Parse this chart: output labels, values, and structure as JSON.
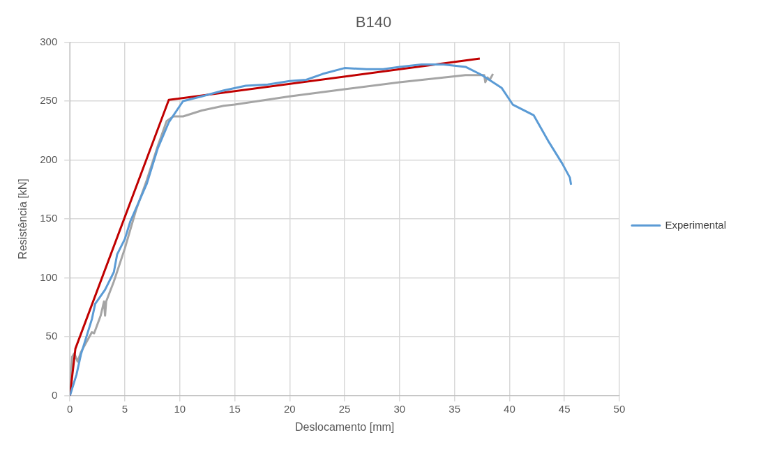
{
  "chart_data": {
    "type": "line",
    "title": "B140",
    "xlabel": "Deslocamento [mm]",
    "ylabel": "Resistência [kN]",
    "xlim": [
      0,
      50
    ],
    "xticks": [
      0,
      5,
      10,
      15,
      20,
      25,
      30,
      35,
      40,
      45,
      50
    ],
    "ylim": [
      0,
      300
    ],
    "yticks": [
      0,
      50,
      100,
      150,
      200,
      250,
      300
    ],
    "grid": true,
    "legend": "right",
    "marker": "none",
    "line_style": "solid",
    "series": [
      {
        "name": "Experimental",
        "color": "#5b9bd5",
        "x": [
          0,
          0.6,
          1,
          2,
          2.3,
          3.2,
          4,
          4.3,
          5,
          5.5,
          7,
          8,
          9,
          10.3,
          12,
          14,
          16,
          18,
          20,
          21.5,
          23,
          25,
          27,
          28.5,
          30,
          32,
          34,
          36,
          37.5,
          39.3,
          40.3,
          42.2,
          43.6,
          44.8,
          45.5,
          45.6
        ],
        "values": [
          0,
          18,
          35,
          65,
          78,
          90,
          105,
          120,
          133,
          148,
          180,
          210,
          232,
          250,
          254,
          259,
          263,
          264,
          267,
          268,
          273,
          278,
          277,
          277,
          279,
          281,
          281,
          279,
          272,
          261,
          247,
          238,
          215,
          197,
          185,
          179
        ]
      },
      {
        "color": "#c00000",
        "x": [
          0,
          0.5,
          9,
          37.3
        ],
        "values": [
          0,
          40,
          251,
          286
        ]
      },
      {
        "color": "#a5a5a5",
        "x": [
          0,
          0.2,
          0.4,
          0.7,
          1,
          2,
          2.2,
          2.8,
          3.1,
          3.2,
          3.3,
          4,
          5,
          6,
          7,
          8,
          8.8,
          9.4,
          10.3,
          12,
          14,
          15,
          20,
          25,
          30,
          35,
          36,
          37.7,
          37.8,
          38,
          38.2,
          38.5
        ],
        "values": [
          0,
          33,
          36,
          29,
          37,
          54,
          53,
          68,
          80,
          68,
          80,
          97,
          125,
          157,
          183,
          212,
          233,
          237,
          237,
          242,
          246,
          247,
          254,
          260,
          266,
          271,
          272,
          272,
          266,
          270,
          268,
          273
        ]
      }
    ]
  }
}
